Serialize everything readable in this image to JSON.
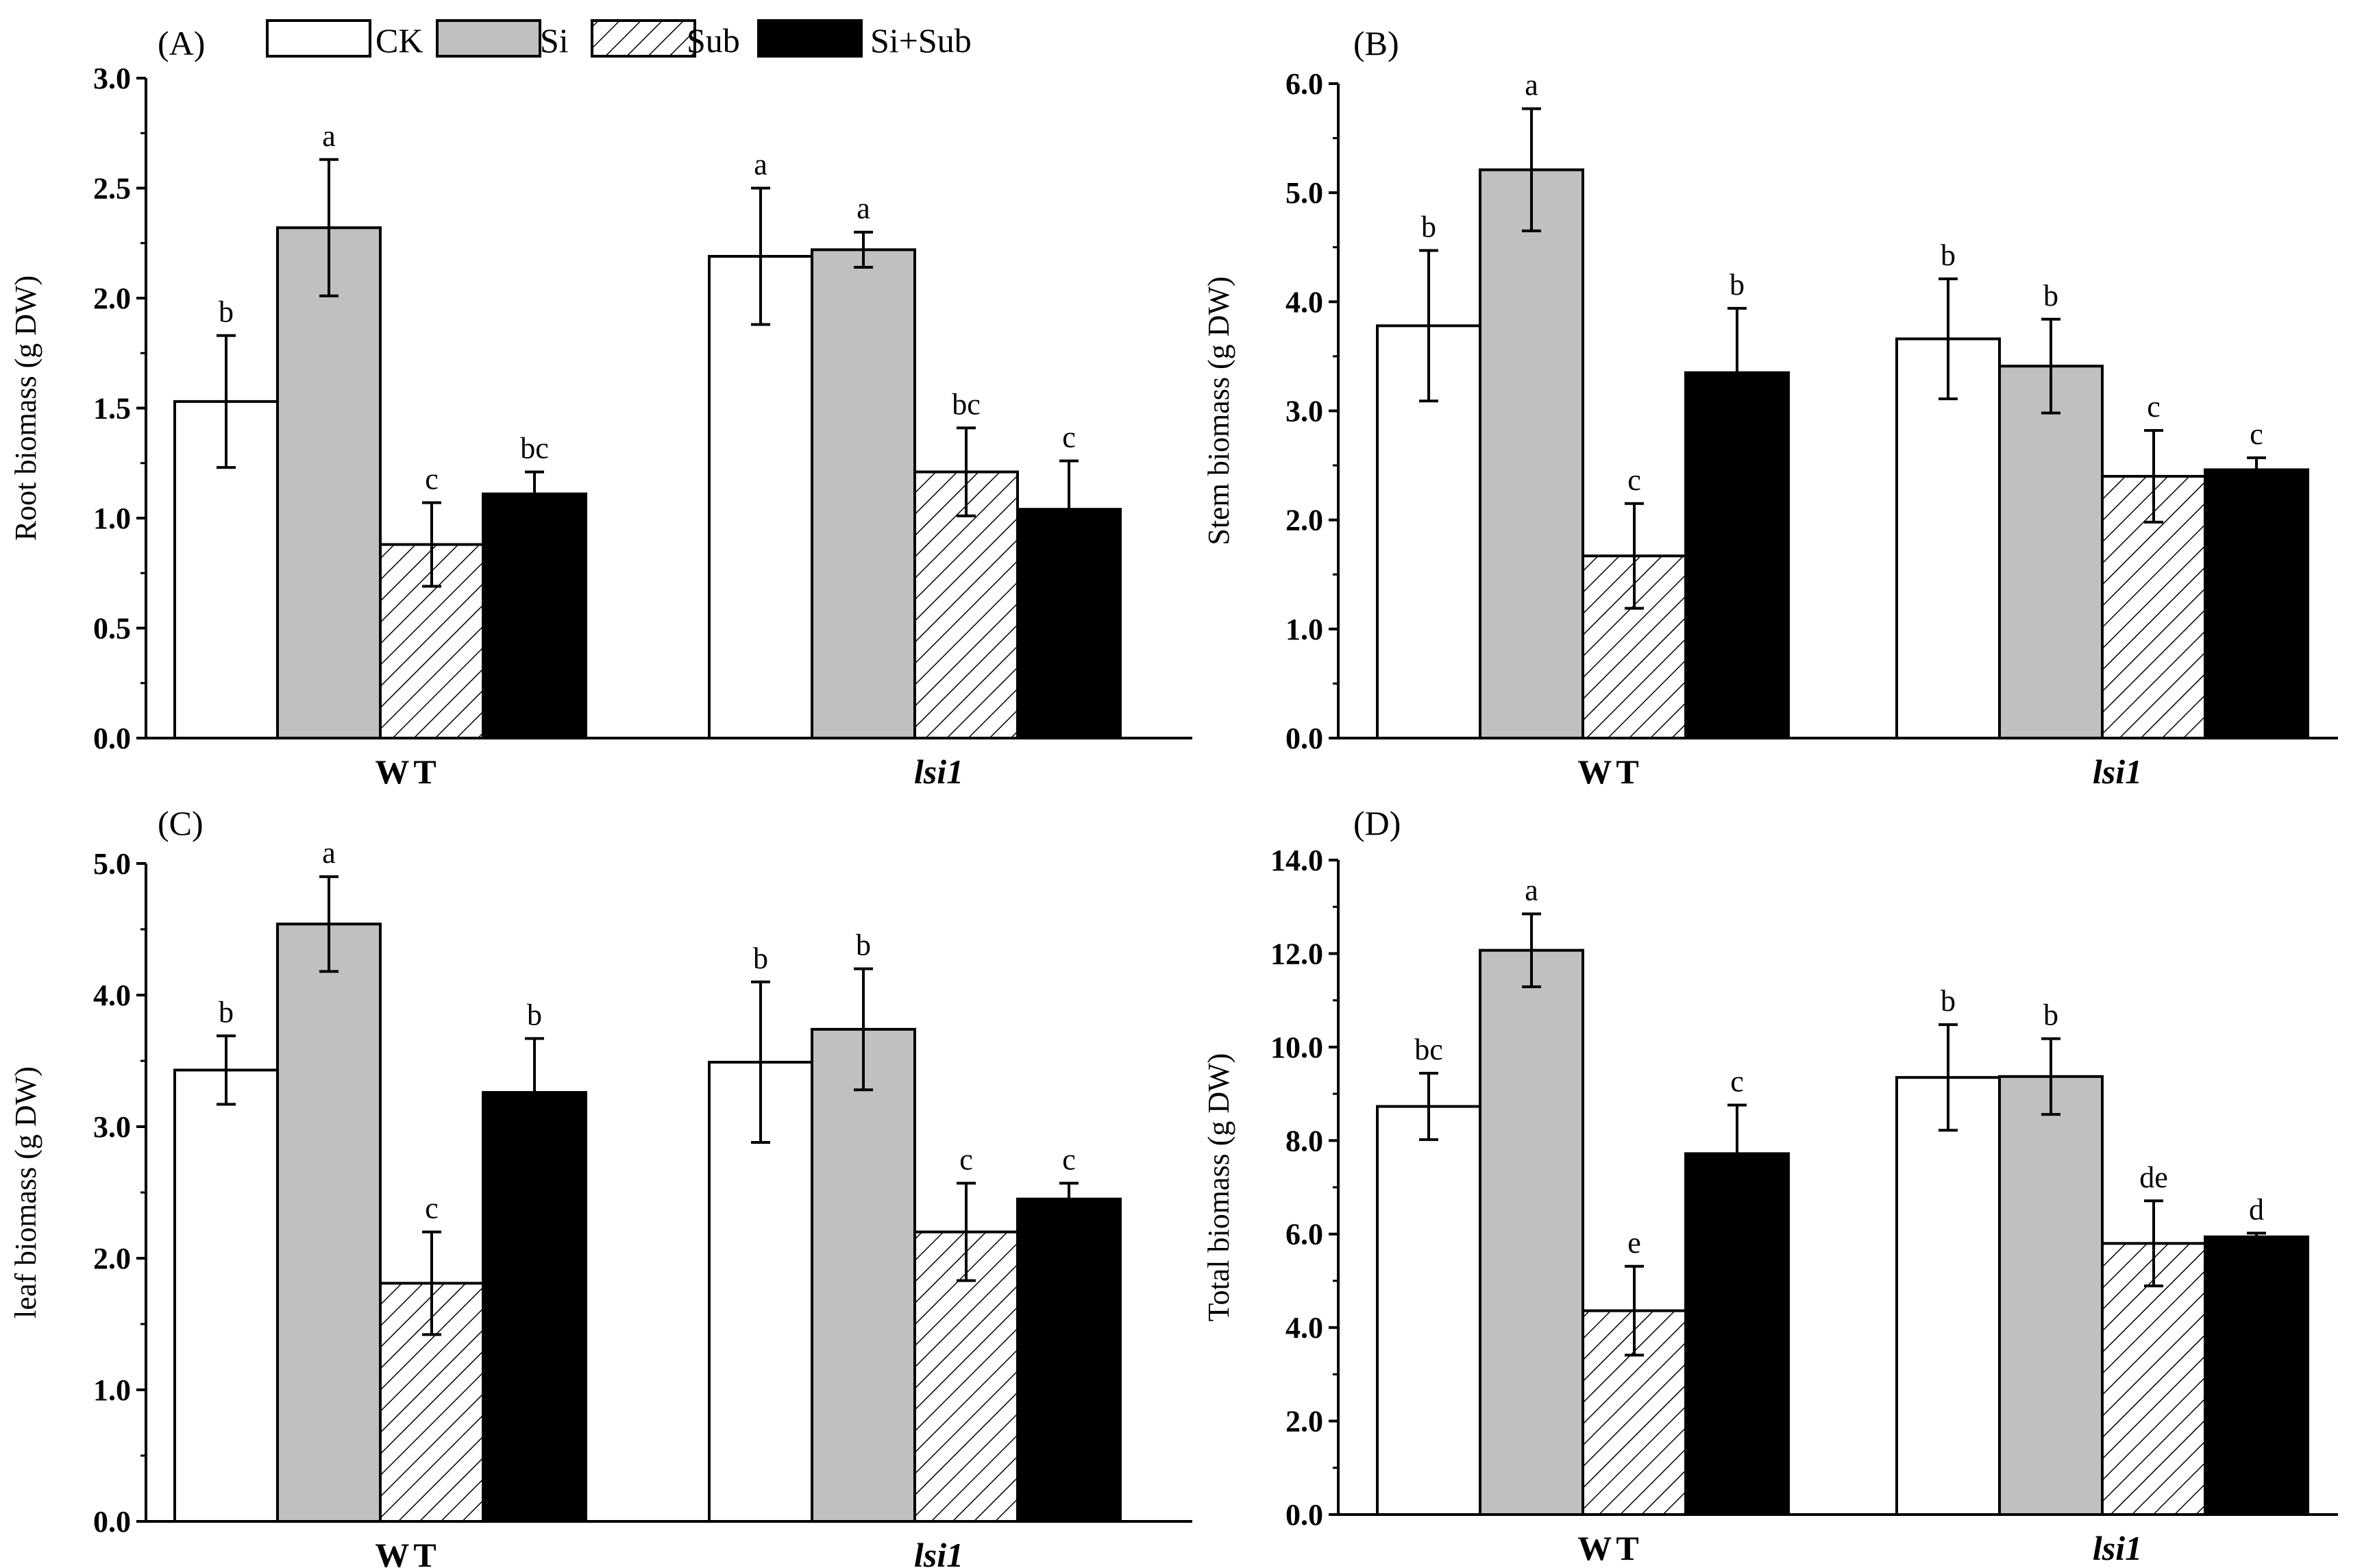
{
  "colors": {
    "CK": "#ffffff",
    "Si": "#c0c0c0",
    "Sub": "hatch",
    "Si+Sub": "#000000"
  },
  "legend": [
    "CK",
    "Si",
    "Sub",
    "Si+Sub"
  ],
  "chart_data": [
    {
      "type": "bar",
      "panel_label": "(A)",
      "ylabel": "Root biomass (g DW)",
      "ylim": [
        0,
        3.0
      ],
      "yticks": [
        "0.0",
        "0.5",
        "1.0",
        "1.5",
        "2.0",
        "2.5",
        "3.0"
      ],
      "ytick_values": [
        0,
        0.5,
        1.0,
        1.5,
        2.0,
        2.5,
        3.0
      ],
      "categories": [
        "WT",
        "lsi1"
      ],
      "series": [
        {
          "name": "CK",
          "values": [
            1.53,
            2.19
          ],
          "errors": [
            0.3,
            0.31
          ],
          "letters": [
            "b",
            "a"
          ]
        },
        {
          "name": "Si",
          "values": [
            2.32,
            2.22
          ],
          "errors": [
            0.31,
            0.08
          ],
          "letters": [
            "a",
            "a"
          ]
        },
        {
          "name": "Sub",
          "values": [
            0.88,
            1.21
          ],
          "errors": [
            0.19,
            0.2
          ],
          "letters": [
            "c",
            "bc"
          ]
        },
        {
          "name": "Si+Sub",
          "values": [
            1.11,
            1.04
          ],
          "errors": [
            0.1,
            0.22
          ],
          "letters": [
            "bc",
            "c"
          ]
        }
      ]
    },
    {
      "type": "bar",
      "panel_label": "(B)",
      "ylabel": "Stem biomass (g DW)",
      "ylim": [
        0,
        6.0
      ],
      "yticks": [
        "0.0",
        "1.0",
        "2.0",
        "3.0",
        "4.0",
        "5.0",
        "6.0"
      ],
      "ytick_values": [
        0,
        1,
        2,
        3,
        4,
        5,
        6
      ],
      "categories": [
        "WT",
        "lsi1"
      ],
      "series": [
        {
          "name": "CK",
          "values": [
            3.78,
            3.66
          ],
          "errors": [
            0.69,
            0.55
          ],
          "letters": [
            "b",
            "b"
          ]
        },
        {
          "name": "Si",
          "values": [
            5.21,
            3.41
          ],
          "errors": [
            0.56,
            0.43
          ],
          "letters": [
            "a",
            "b"
          ]
        },
        {
          "name": "Sub",
          "values": [
            1.67,
            2.4
          ],
          "errors": [
            0.48,
            0.42
          ],
          "letters": [
            "c",
            "c"
          ]
        },
        {
          "name": "Si+Sub",
          "values": [
            3.35,
            2.46
          ],
          "errors": [
            0.59,
            0.11
          ],
          "letters": [
            "b",
            "c"
          ]
        }
      ]
    },
    {
      "type": "bar",
      "panel_label": "(C)",
      "ylabel": "leaf biomass (g DW)",
      "ylim": [
        0,
        5.0
      ],
      "yticks": [
        "0.0",
        "1.0",
        "2.0",
        "3.0",
        "4.0",
        "5.0"
      ],
      "ytick_values": [
        0,
        1,
        2,
        3,
        4,
        5
      ],
      "categories": [
        "WT",
        "lsi1"
      ],
      "series": [
        {
          "name": "CK",
          "values": [
            3.43,
            3.49
          ],
          "errors": [
            0.26,
            0.61
          ],
          "letters": [
            "b",
            "b"
          ]
        },
        {
          "name": "Si",
          "values": [
            4.54,
            3.74
          ],
          "errors": [
            0.36,
            0.46
          ],
          "letters": [
            "a",
            "b"
          ]
        },
        {
          "name": "Sub",
          "values": [
            1.81,
            2.2
          ],
          "errors": [
            0.39,
            0.37
          ],
          "letters": [
            "c",
            "c"
          ]
        },
        {
          "name": "Si+Sub",
          "values": [
            3.26,
            2.45
          ],
          "errors": [
            0.41,
            0.12
          ],
          "letters": [
            "b",
            "c"
          ]
        }
      ]
    },
    {
      "type": "bar",
      "panel_label": "(D)",
      "ylabel": "Total biomass (g DW)",
      "ylim": [
        0,
        14.0
      ],
      "yticks": [
        "0.0",
        "2.0",
        "4.0",
        "6.0",
        "8.0",
        "10.0",
        "12.0",
        "14.0"
      ],
      "ytick_values": [
        0,
        2,
        4,
        6,
        8,
        10,
        12,
        14
      ],
      "categories": [
        "WT",
        "lsi1"
      ],
      "series": [
        {
          "name": "CK",
          "values": [
            8.73,
            9.35
          ],
          "errors": [
            0.71,
            1.13
          ],
          "letters": [
            "bc",
            "b"
          ]
        },
        {
          "name": "Si",
          "values": [
            12.07,
            9.37
          ],
          "errors": [
            0.78,
            0.81
          ],
          "letters": [
            "a",
            "b"
          ]
        },
        {
          "name": "Sub",
          "values": [
            4.36,
            5.8
          ],
          "errors": [
            0.95,
            0.91
          ],
          "letters": [
            "e",
            "de"
          ]
        },
        {
          "name": "Si+Sub",
          "values": [
            7.72,
            5.94
          ],
          "errors": [
            1.04,
            0.08
          ],
          "letters": [
            "c",
            "d"
          ]
        }
      ]
    }
  ]
}
